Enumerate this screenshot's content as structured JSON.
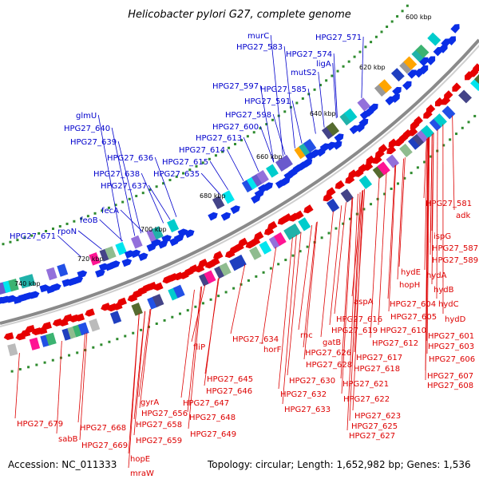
{
  "title": "Helicobacter pylori G27, complete genome",
  "footer": {
    "accession": "Accession: NC_011333",
    "stats": "Topology: circular; Length: 1,652,982 bp; Genes: 1,536"
  },
  "colors": {
    "outer_label": "#0000cc",
    "inner_label": "#dd0000",
    "backbone": "#888888",
    "tick_dot": "#2e8b2e"
  },
  "ticks": [
    "600 kbp",
    "620 kbp",
    "640 kbp",
    "660 kbp",
    "680 kbp",
    "700 kbp",
    "720 kbp",
    "740 kbp"
  ],
  "outer_labels": [
    "HPG27_571",
    "HPG27_574",
    "ligA",
    "murC",
    "HPG27_583",
    "mutS2",
    "HPG27_585",
    "HPG27_591",
    "HPG27_597",
    "HPG27_598",
    "HPG27_600",
    "HPG27_613",
    "HPG27_614",
    "HPG27_615",
    "HPG27_635",
    "HPG27_636",
    "HPG27_637",
    "HPG27_638",
    "glmU",
    "HPG27_640",
    "HPG27_639",
    "fecA",
    "feoB",
    "rpoN",
    "HPG27_671"
  ],
  "inner_labels": [
    "HPG27_581",
    "adk",
    "ispG",
    "HPG27_587",
    "HPG27_589",
    "hydA",
    "hydE",
    "hydB",
    "hopH",
    "hydC",
    "HPG27_604",
    "hydD",
    "HPG27_605",
    "aspA",
    "HPG27_601",
    "HPG27_610",
    "HPG27_603",
    "HPG27_612",
    "HPG27_606",
    "HPG27_616",
    "HPG27_619",
    "HPG27_607",
    "HPG27_608",
    "gatB",
    "rnc",
    "HPG27_617",
    "HPG27_626",
    "HPG27_618",
    "HPG27_628",
    "HPG27_621",
    "HPG27_630",
    "HPG27_622",
    "HPG27_632",
    "HPG27_623",
    "HPG27_633",
    "HPG27_625",
    "HPG27_627",
    "HPG27_634",
    "horF",
    "fliP",
    "HPG27_645",
    "HPG27_646",
    "HPG27_647",
    "HPG27_648",
    "HPG27_649",
    "gyrA",
    "HPG27_656",
    "HPG27_658",
    "HPG27_659",
    "hopE",
    "mraW",
    "HPG27_668",
    "HPG27_669",
    "sabB",
    "HPG27_679"
  ]
}
